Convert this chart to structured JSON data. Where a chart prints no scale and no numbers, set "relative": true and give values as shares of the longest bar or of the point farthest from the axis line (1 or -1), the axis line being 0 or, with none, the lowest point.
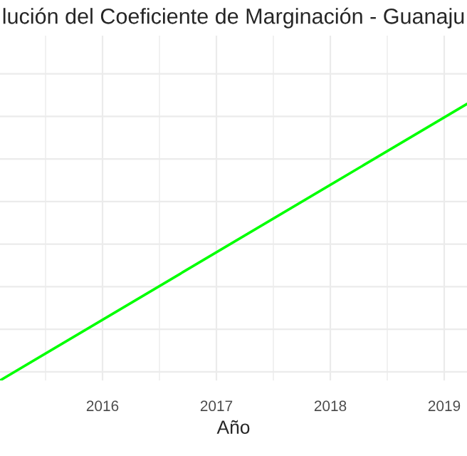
{
  "chart_data": {
    "type": "line",
    "title": "lución del Coeficiente de Marginación - Guanaju",
    "xlabel": "Año",
    "x": [
      2015.1,
      2019.2
    ],
    "series": [
      {
        "color": "#00ff00",
        "values": [
          0,
          1
        ]
      }
    ],
    "relative": true,
    "xlim": [
      2015.1,
      2019.2
    ],
    "xticks": [
      2016,
      2017,
      2018,
      2019
    ],
    "grid": true,
    "tick_labels": "x"
  }
}
